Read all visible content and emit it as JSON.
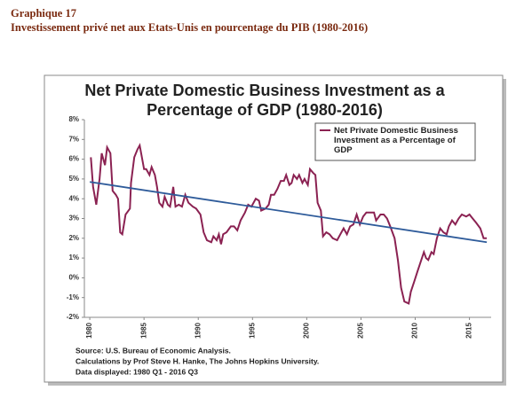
{
  "header": {
    "label": "Graphique 17",
    "title": "Investissement privé net aux Etats-Unis en pourcentage du PIB (1980-2016)"
  },
  "chart_data": {
    "type": "line",
    "title": "Net Private Domestic Business Investment as a Percentage of GDP (1980-2016)",
    "x": [
      1980.1,
      1980.3,
      1980.6,
      1980.9,
      1981.1,
      1981.4,
      1981.6,
      1981.9,
      1982.1,
      1982.4,
      1982.6,
      1982.8,
      1983.0,
      1983.3,
      1983.7,
      1983.8,
      1984.1,
      1984.4,
      1984.6,
      1985.0,
      1985.2,
      1985.5,
      1985.7,
      1986.0,
      1986.2,
      1986.4,
      1986.7,
      1986.9,
      1987.2,
      1987.4,
      1987.7,
      1987.9,
      1988.2,
      1988.5,
      1988.8,
      1989.1,
      1989.5,
      1989.8,
      1990.2,
      1990.5,
      1990.8,
      1991.2,
      1991.4,
      1991.7,
      1991.9,
      1992.1,
      1992.3,
      1992.6,
      1993.0,
      1993.3,
      1993.6,
      1993.9,
      1994.3,
      1994.6,
      1994.9,
      1995.3,
      1995.6,
      1995.8,
      1996.2,
      1996.5,
      1996.7,
      1997.0,
      1997.3,
      1997.6,
      1997.9,
      1998.1,
      1998.4,
      1998.6,
      1998.8,
      1999.1,
      1999.3,
      1999.6,
      1999.8,
      2000.1,
      2000.3,
      2000.6,
      2000.8,
      2001.0,
      2001.3,
      2001.5,
      2001.8,
      2002.1,
      2002.4,
      2002.8,
      2003.1,
      2003.4,
      2003.7,
      2004.0,
      2004.3,
      2004.6,
      2004.9,
      2005.2,
      2005.5,
      2005.9,
      2006.2,
      2006.4,
      2006.8,
      2007.1,
      2007.4,
      2007.7,
      2008.1,
      2008.4,
      2008.7,
      2009.0,
      2009.4,
      2009.6,
      2009.9,
      2010.2,
      2010.5,
      2010.8,
      2011.0,
      2011.2,
      2011.5,
      2011.7,
      2012.0,
      2012.3,
      2012.6,
      2012.9,
      2013.1,
      2013.4,
      2013.7,
      2014.0,
      2014.3,
      2014.7,
      2015.0,
      2015.3,
      2015.6,
      2016.0,
      2016.3,
      2016.6
    ],
    "series": [
      {
        "name": "Net Private Domestic Business Investment as a Percentage of GDP",
        "color": "#8b2252",
        "values": [
          6.1,
          4.6,
          3.7,
          5.0,
          6.3,
          5.7,
          6.6,
          6.3,
          4.4,
          4.2,
          4.0,
          2.3,
          2.2,
          3.2,
          3.5,
          4.8,
          6.1,
          6.5,
          6.7,
          5.5,
          5.5,
          5.2,
          5.6,
          5.2,
          4.6,
          3.8,
          3.6,
          4.1,
          3.7,
          3.6,
          4.6,
          3.6,
          3.7,
          3.6,
          4.2,
          3.8,
          3.6,
          3.5,
          3.2,
          2.3,
          1.9,
          1.8,
          2.1,
          1.9,
          2.2,
          1.7,
          2.2,
          2.3,
          2.6,
          2.6,
          2.4,
          2.9,
          3.3,
          3.7,
          3.6,
          4.0,
          3.9,
          3.4,
          3.5,
          3.7,
          4.2,
          4.2,
          4.5,
          4.9,
          4.9,
          5.2,
          4.7,
          4.8,
          5.2,
          5.0,
          5.2,
          4.8,
          5.0,
          4.7,
          5.5,
          5.3,
          5.2,
          3.8,
          3.4,
          2.1,
          2.3,
          2.2,
          2.0,
          1.9,
          2.2,
          2.5,
          2.2,
          2.6,
          2.7,
          3.2,
          2.7,
          3.1,
          3.3,
          3.3,
          3.3,
          2.9,
          3.2,
          3.2,
          3.0,
          2.6,
          2.0,
          0.9,
          -0.5,
          -1.2,
          -1.3,
          -0.7,
          -0.2,
          0.3,
          0.8,
          1.3,
          1.0,
          0.9,
          1.3,
          1.2,
          2.0,
          2.5,
          2.3,
          2.2,
          2.6,
          2.9,
          2.7,
          3.0,
          3.2,
          3.1,
          3.2,
          3.0,
          2.8,
          2.5,
          2.0,
          2.0
        ]
      }
    ],
    "trend": {
      "color": "#2e5b9a",
      "x": [
        1980,
        2016.6
      ],
      "values": [
        4.85,
        1.8
      ]
    },
    "xlim": [
      1979.5,
      2017
    ],
    "xticks": [
      1980,
      1985,
      1990,
      1995,
      2000,
      2005,
      2010,
      2015
    ],
    "ylim": [
      -2,
      8
    ],
    "yticks": [
      {
        "value": -2,
        "label": "-2%"
      },
      {
        "value": -1,
        "label": "-1%"
      },
      {
        "value": 0,
        "label": "0%"
      },
      {
        "value": 1,
        "label": "1%"
      },
      {
        "value": 2,
        "label": "2%"
      },
      {
        "value": 3,
        "label": "3%"
      },
      {
        "value": 4,
        "label": "4%"
      },
      {
        "value": 5,
        "label": "5%"
      },
      {
        "value": 6,
        "label": "6%"
      },
      {
        "value": 7,
        "label": "7%"
      },
      {
        "value": 8,
        "label": "8%"
      }
    ],
    "legend_position": "upper right",
    "source": [
      "Source: U.S. Bureau of Economic Analysis.",
      "Calculations by Prof Steve H. Hanke, The Johns Hopkins University.",
      "Data displayed: 1980 Q1 - 2016 Q3"
    ]
  }
}
